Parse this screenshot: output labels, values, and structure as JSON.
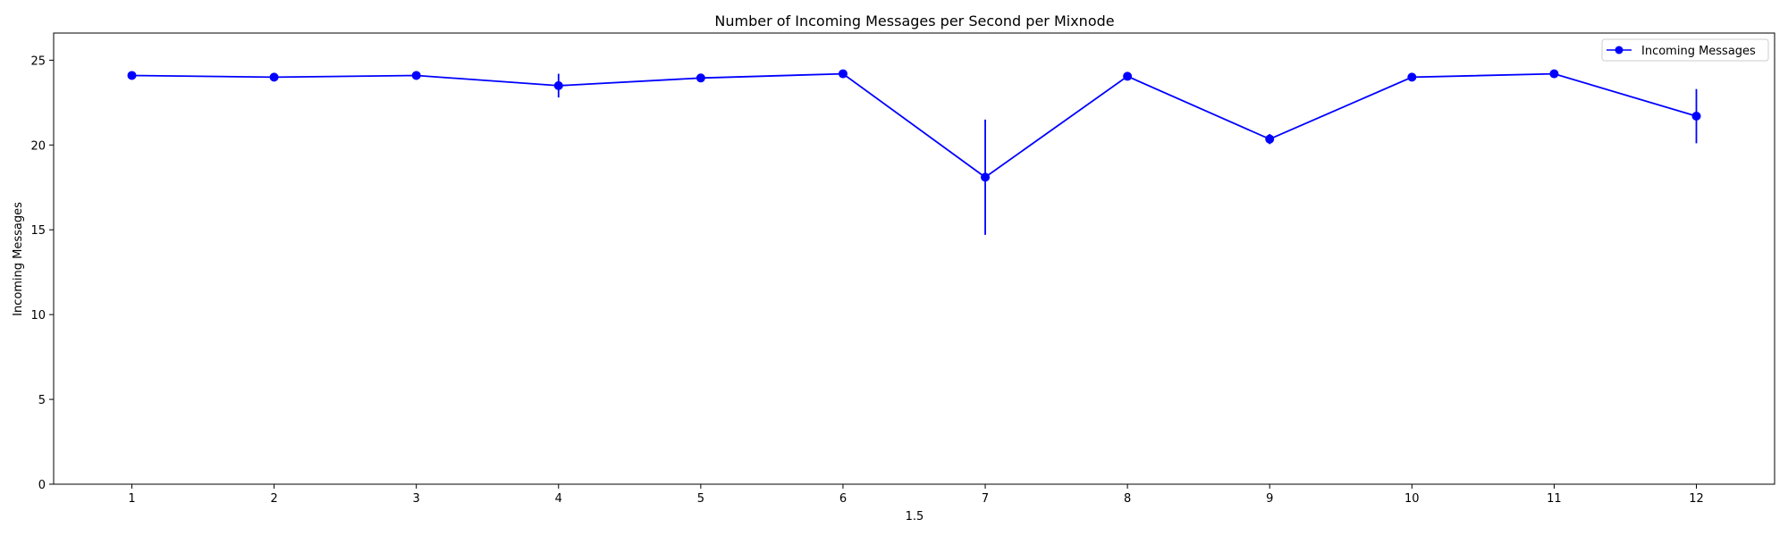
{
  "chart_data": {
    "type": "line",
    "title": "Number of Incoming Messages per Second per Mixnode",
    "xlabel": "1.5",
    "ylabel": "Incoming Messages",
    "x": [
      1,
      2,
      3,
      4,
      5,
      6,
      7,
      8,
      9,
      10,
      11,
      12
    ],
    "xticks": [
      1,
      2,
      3,
      4,
      5,
      6,
      7,
      8,
      9,
      10,
      11,
      12
    ],
    "yticks": [
      0,
      5,
      10,
      15,
      20,
      25
    ],
    "xlim": [
      0.45,
      12.55
    ],
    "ylim": [
      0,
      26.6
    ],
    "grid": false,
    "legend_position": "top-right",
    "series": [
      {
        "name": "Incoming Messages",
        "color": "#0000ff",
        "marker": "circle",
        "values": [
          24.1,
          24.0,
          24.1,
          23.5,
          23.95,
          24.2,
          18.1,
          24.05,
          20.35,
          24.0,
          24.2,
          21.7
        ],
        "errors": [
          0.1,
          0.1,
          0.25,
          0.7,
          0.1,
          0.1,
          3.4,
          0.1,
          0.3,
          0.1,
          0.1,
          1.6
        ]
      }
    ]
  }
}
